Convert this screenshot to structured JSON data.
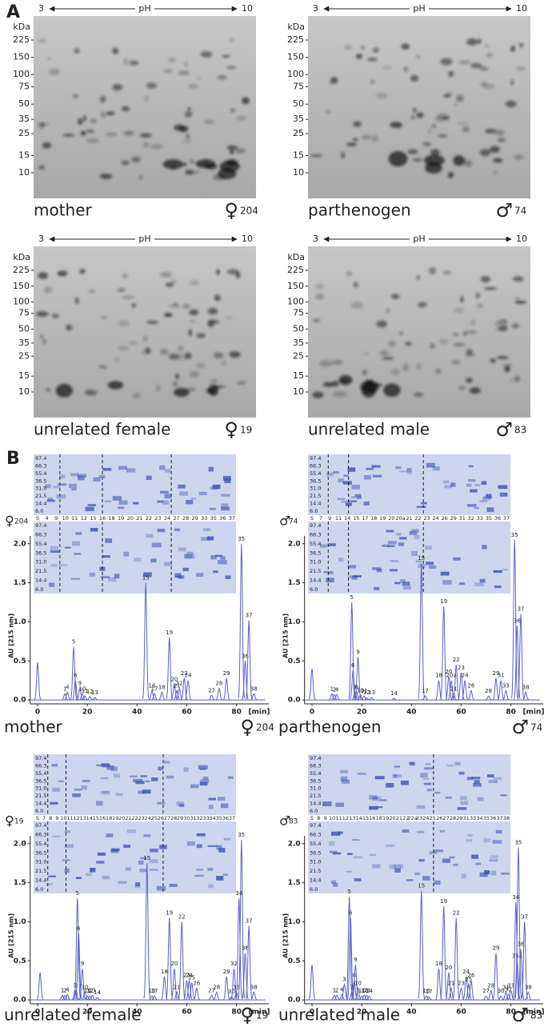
{
  "panel_labels": [
    "A",
    "B"
  ],
  "gels": [
    {
      "caption": "mother",
      "symbol": "♀",
      "number": "204",
      "ph_left": "3",
      "ph_label": "pH",
      "ph_right": "10",
      "kda_label": "kDa",
      "kda_ticks": [
        225,
        150,
        100,
        75,
        50,
        35,
        25,
        15,
        10
      ]
    },
    {
      "caption": "parthenogen",
      "symbol": "♂",
      "number": "74",
      "ph_left": "3",
      "ph_label": "pH",
      "ph_right": "10",
      "kda_label": "kDa",
      "kda_ticks": [
        225,
        150,
        100,
        75,
        50,
        35,
        25,
        15,
        10
      ]
    },
    {
      "caption": "unrelated female",
      "symbol": "♀",
      "number": "19",
      "ph_left": "3",
      "ph_label": "pH",
      "ph_right": "10",
      "kda_label": "kDa",
      "kda_ticks": [
        225,
        150,
        100,
        75,
        50,
        35,
        25,
        15,
        10
      ]
    },
    {
      "caption": "unrelated male",
      "symbol": "♂",
      "number": "83",
      "ph_left": "3",
      "ph_label": "pH",
      "ph_right": "10",
      "kda_label": "kDa",
      "kda_ticks": [
        225,
        150,
        100,
        75,
        50,
        35,
        25,
        15,
        10
      ]
    }
  ],
  "chart_data": [
    {
      "type": "line",
      "caption": "mother",
      "symbol": "♀",
      "number": "204",
      "ylabel": "AU [215 nm]",
      "xlabel": "[min]",
      "color": "#5a5fc8",
      "xlim": [
        -3,
        93
      ],
      "ylim": [
        -0.05,
        2.1
      ],
      "xticks": [
        0,
        20,
        40,
        60,
        80
      ],
      "yticks": [
        {
          "value": 0,
          "label": "0.0"
        },
        {
          "value": 0.5,
          "label": "0.5"
        },
        {
          "value": 1,
          "label": "1.0"
        },
        {
          "value": 1.5,
          "label": "1.5"
        },
        {
          "value": 2,
          "label": "2.0"
        }
      ],
      "ladder": [
        "97.4",
        "66.3",
        "55.4",
        "36.5",
        "31.0",
        "21.5",
        "14.4",
        "6.0"
      ],
      "lanes": [
        "S",
        "4",
        "9",
        "10",
        "11",
        "12",
        "15",
        "16",
        "18",
        "19",
        "20",
        "21",
        "22",
        "23",
        "24",
        "27",
        "28",
        "29",
        "33",
        "35",
        "36",
        "37"
      ],
      "peaks": {
        "labels": [
          null,
          "1",
          "4",
          "5",
          "6",
          "9",
          "10",
          "11",
          "12",
          "13",
          "15",
          "16",
          "17",
          "18",
          "19",
          "20",
          "21",
          "22",
          "23",
          "24",
          "27",
          "28",
          "29",
          "35",
          "36",
          "37",
          "38"
        ],
        "x": [
          0,
          11,
          12,
          14.5,
          15.2,
          17,
          18,
          19,
          21,
          23,
          43.5,
          46,
          47,
          50,
          53,
          55,
          56,
          57,
          59,
          60.5,
          70,
          73,
          76,
          82,
          83.5,
          85,
          87
        ],
        "y": [
          0.48,
          0.08,
          0.1,
          0.68,
          0.25,
          0.15,
          0.08,
          0.05,
          0.04,
          0.03,
          1.5,
          0.12,
          0.08,
          0.1,
          0.8,
          0.2,
          0.12,
          0.15,
          0.28,
          0.25,
          0.06,
          0.15,
          0.28,
          2.0,
          0.5,
          1.02,
          0.08
        ]
      }
    },
    {
      "type": "line",
      "caption": "parthenogen",
      "symbol": "♂",
      "number": "74",
      "ylabel": "AU [215 nm]",
      "xlabel": "[min]",
      "color": "#5a5fc8",
      "xlim": [
        -3,
        93
      ],
      "ylim": [
        -0.05,
        2.1
      ],
      "xticks": [
        0,
        20,
        40,
        60,
        80
      ],
      "yticks": [
        {
          "value": 0,
          "label": "0.0"
        },
        {
          "value": 0.5,
          "label": "0.5"
        },
        {
          "value": 1,
          "label": "1.0"
        },
        {
          "value": 1.5,
          "label": "1.5"
        },
        {
          "value": 2,
          "label": "2.0"
        }
      ],
      "ladder": [
        "97.4",
        "66.3",
        "55.4",
        "36.5",
        "31.0",
        "21.5",
        "14.4",
        "6.0"
      ],
      "lanes": [
        "S",
        "7",
        "9",
        "11",
        "14",
        "15",
        "17",
        "18",
        "19",
        "20",
        "20a",
        "21",
        "22",
        "23",
        "24",
        "26",
        "29",
        "31",
        "32",
        "33",
        "35",
        "36",
        "37"
      ],
      "peaks": {
        "labels": [
          null,
          "1",
          "2",
          "4",
          "5",
          "6",
          "7",
          "8",
          "9",
          "10",
          "11",
          "12",
          "13",
          "14",
          "15",
          "17",
          "18",
          "19",
          "20",
          "20a",
          "21",
          "22",
          "23",
          "24",
          "26",
          "28",
          "29",
          "31",
          "33",
          "35",
          "36",
          "37",
          "38"
        ],
        "x": [
          0,
          8,
          9,
          10,
          16,
          16.5,
          17.3,
          18,
          18.5,
          19.5,
          21,
          22,
          24,
          33,
          44,
          45.5,
          51,
          53,
          55,
          56,
          57,
          58,
          60,
          61.5,
          64,
          71,
          74,
          76,
          78,
          81.5,
          82.5,
          84,
          86
        ],
        "y": [
          0.4,
          0.08,
          0.07,
          0.07,
          1.25,
          0.38,
          0.1,
          0.1,
          0.55,
          0.06,
          0.05,
          0.03,
          0.03,
          0.02,
          1.75,
          0.05,
          0.25,
          1.2,
          0.3,
          0.25,
          0.08,
          0.45,
          0.35,
          0.25,
          0.12,
          0.05,
          0.28,
          0.25,
          0.12,
          2.05,
          0.95,
          1.1,
          0.1
        ]
      }
    },
    {
      "type": "line",
      "caption": "unrelated female",
      "symbol": "♀",
      "number": "19",
      "ylabel": "AU [215 nm]",
      "xlabel": "[min]",
      "color": "#5a5fc8",
      "xlim": [
        -3,
        93
      ],
      "ylim": [
        -0.05,
        2.1
      ],
      "xticks": [
        0,
        20,
        40,
        60,
        80
      ],
      "yticks": [
        {
          "value": 0,
          "label": "0.0"
        },
        {
          "value": 0.5,
          "label": "0.5"
        },
        {
          "value": 1,
          "label": "1.0"
        },
        {
          "value": 1.5,
          "label": "1.5"
        },
        {
          "value": 2,
          "label": "2.0"
        }
      ],
      "ladder": [
        "97.4",
        "66.3",
        "55.4",
        "36.5",
        "31.0",
        "21.5",
        "14.4",
        "6.0"
      ],
      "lanes": [
        "S",
        "7",
        "8",
        "9",
        "10",
        "11",
        "12",
        "13",
        "14",
        "15",
        "16",
        "18",
        "19",
        "20",
        "21",
        "22",
        "23",
        "24",
        "25",
        "26",
        "27",
        "28",
        "29",
        "30",
        "31",
        "32",
        "33",
        "34",
        "35",
        "36",
        "37"
      ],
      "peaks": {
        "labels": [
          null,
          "1",
          "2",
          "4",
          "7",
          "8",
          "5",
          "6",
          "9",
          "10",
          "11",
          "12",
          "13",
          "14",
          "15",
          "16",
          "17",
          "18",
          "19",
          "20",
          "21",
          "22",
          "23",
          "24",
          "25",
          "26",
          "27",
          "28",
          "29",
          "30",
          "32",
          "33",
          "34",
          "35",
          "36",
          "37",
          "38"
        ],
        "x": [
          1,
          10,
          11,
          12,
          15,
          15.5,
          16,
          16.5,
          18,
          19,
          20,
          21,
          22,
          24,
          44,
          46,
          47,
          51,
          53,
          55,
          56,
          58,
          60,
          61,
          62,
          64,
          70,
          72,
          76,
          78,
          79,
          80,
          81,
          82,
          83.5,
          85,
          87
        ],
        "y": [
          0.35,
          0.06,
          0.06,
          0.07,
          0.12,
          0.12,
          1.3,
          0.85,
          0.4,
          0.1,
          0.05,
          0.05,
          0.06,
          0.03,
          1.75,
          0.05,
          0.05,
          0.3,
          1.05,
          0.4,
          0.1,
          1.0,
          0.25,
          0.25,
          0.22,
          0.15,
          0.06,
          0.1,
          0.3,
          0.04,
          0.4,
          0.1,
          1.3,
          2.05,
          0.6,
          0.95,
          0.1
        ]
      }
    },
    {
      "type": "line",
      "caption": "unrelated male",
      "symbol": "♂",
      "number": "83",
      "ylabel": "AU [215 nm]",
      "xlabel": "[min]",
      "color": "#5a5fc8",
      "xlim": [
        -3,
        93
      ],
      "ylim": [
        -0.05,
        2.1
      ],
      "xticks": [
        0,
        20,
        40,
        60,
        80
      ],
      "yticks": [
        {
          "value": 0,
          "label": "0.0"
        },
        {
          "value": 0.5,
          "label": "0.5"
        },
        {
          "value": 1,
          "label": "1.0"
        },
        {
          "value": 1.5,
          "label": "1.5"
        },
        {
          "value": 2,
          "label": "2.0"
        }
      ],
      "ladder": [
        "97.4",
        "66.3",
        "55.4",
        "36.5",
        "31.0",
        "21.5",
        "14.4",
        "6.0"
      ],
      "lanes": [
        "S",
        "8",
        "9",
        "10",
        "11",
        "12",
        "13",
        "14",
        "15",
        "16",
        "18",
        "19",
        "20",
        "21",
        "22",
        "22a",
        "23",
        "24",
        "25",
        "26",
        "27",
        "28",
        "29",
        "31",
        "33",
        "34",
        "35",
        "36",
        "37",
        "38"
      ],
      "peaks": {
        "labels": [
          null,
          "1",
          "2",
          "4",
          "3",
          "5",
          "6",
          "7",
          "8",
          "9",
          "10",
          "11",
          "12",
          "13",
          "14",
          "15",
          "16",
          "17",
          "18",
          "19",
          "20",
          "21",
          "22",
          "23",
          "24",
          "25",
          "26",
          "27",
          "28",
          "29",
          "30",
          "31",
          "32",
          "33",
          "34",
          "35a",
          "35",
          "36",
          "37",
          "38"
        ],
        "x": [
          0,
          9,
          10,
          12,
          13,
          15,
          15.5,
          16,
          17,
          17.5,
          18.5,
          20,
          21,
          22,
          23,
          44,
          46,
          47,
          51,
          53,
          55,
          56,
          58,
          60,
          62,
          63,
          64,
          70,
          72,
          74,
          76,
          78,
          79,
          80,
          82,
          82.5,
          83,
          84,
          85.5,
          87
        ],
        "y": [
          0.45,
          0.06,
          0.06,
          0.07,
          0.2,
          1.32,
          1.05,
          0.1,
          0.25,
          0.45,
          0.15,
          0.05,
          0.06,
          0.06,
          0.05,
          1.4,
          0.05,
          0.04,
          0.4,
          1.2,
          0.35,
          0.15,
          1.05,
          0.15,
          0.3,
          0.2,
          0.25,
          0.05,
          0.12,
          0.6,
          0.05,
          0.1,
          0.07,
          0.12,
          1.25,
          0.5,
          1.95,
          0.65,
          1.0,
          0.1
        ]
      }
    }
  ]
}
